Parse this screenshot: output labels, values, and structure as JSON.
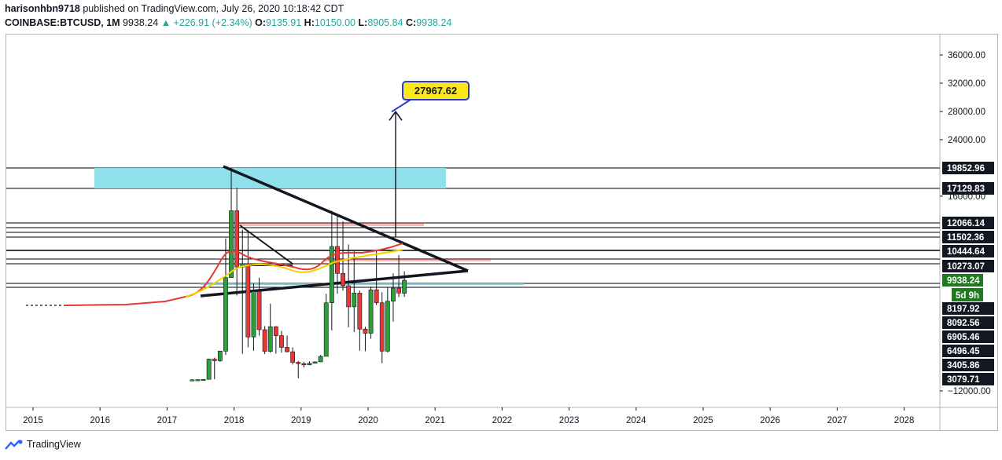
{
  "header": {
    "publisher": "harisonhbn9718",
    "published_text": "published on TradingView.com, July 26, 2020 10:18:42 CDT",
    "symbol": "COINBASE:BTCUSD, 1M",
    "last": "9938.24",
    "change": "▲ +226.91 (+2.34%)",
    "o_label": "O:",
    "o_value": "9135.91",
    "h_label": "H:",
    "h_value": "10150.00",
    "l_label": "L:",
    "l_value": "8905.84",
    "c_label": "C:",
    "c_value": "9938.24"
  },
  "footer": {
    "brand": "TradingView"
  },
  "colors": {
    "up": "#26a69a",
    "candle_up": "#2e9e3a",
    "candle_down": "#e53935",
    "ma_red": "#e53935",
    "ma_yellow": "#f5d000",
    "zone": "#8fe0ea",
    "target_bg": "#fbe71c",
    "target_border": "#2c3ac9",
    "price_tag": "#1f7a1f"
  },
  "chart_data": {
    "type": "candlestick",
    "title": "",
    "xlabel": "",
    "ylabel": "",
    "x_ticks": [
      "2015",
      "2016",
      "2017",
      "2018",
      "2019",
      "2020",
      "2021",
      "2022",
      "2023",
      "2024",
      "2025",
      "2026",
      "2027",
      "2028"
    ],
    "y_ticks": [
      "36000.00",
      "32000.00",
      "28000.00",
      "24000.00",
      "16000.00",
      "−12000.00"
    ],
    "y_tick_values": [
      36000,
      32000,
      28000,
      24000,
      16000,
      -12000
    ],
    "price_labels": [
      "19852.96",
      "17129.83",
      "12066.14",
      "11502.36",
      "10444.64",
      "10273.07",
      "8197.92",
      "8092.56",
      "6905.46",
      "6496.45",
      "3405.86",
      "3079.71"
    ],
    "current_price": "9938.24",
    "countdown": "5d 9h",
    "target_label": "27967.62",
    "target_value": 27967.62,
    "candles_2017_2020": [
      {
        "date": "2017-05",
        "open": 1350,
        "close": 2300,
        "high": 2800,
        "low": 1400
      },
      {
        "date": "2017-06",
        "open": 2300,
        "close": 2450,
        "high": 3000,
        "low": 2100
      },
      {
        "date": "2017-07",
        "open": 2450,
        "close": 2850,
        "high": 2950,
        "low": 1900
      },
      {
        "date": "2017-08",
        "open": 2850,
        "close": 4700,
        "high": 4800,
        "low": 2700
      },
      {
        "date": "2017-09",
        "open": 4700,
        "close": 4350,
        "high": 5000,
        "low": 3000
      },
      {
        "date": "2017-10",
        "open": 4350,
        "close": 6450,
        "high": 6500,
        "low": 4100
      },
      {
        "date": "2017-11",
        "open": 6450,
        "close": 10000,
        "high": 11400,
        "low": 5600
      },
      {
        "date": "2017-12",
        "open": 10000,
        "close": 13850,
        "high": 19850,
        "low": 10000
      },
      {
        "date": "2018-01",
        "open": 13850,
        "close": 10250,
        "high": 17200,
        "low": 9000
      },
      {
        "date": "2018-02",
        "open": 10250,
        "close": 10300,
        "high": 11800,
        "low": 5900
      },
      {
        "date": "2018-03",
        "open": 10300,
        "close": 6900,
        "high": 11700,
        "low": 6600
      },
      {
        "date": "2018-04",
        "open": 6900,
        "close": 9250,
        "high": 9750,
        "low": 6500
      },
      {
        "date": "2018-05",
        "open": 9250,
        "close": 7500,
        "high": 10000,
        "low": 7000
      },
      {
        "date": "2018-06",
        "open": 7500,
        "close": 6400,
        "high": 7800,
        "low": 5800
      },
      {
        "date": "2018-07",
        "open": 6400,
        "close": 7750,
        "high": 8500,
        "low": 6100
      },
      {
        "date": "2018-08",
        "open": 7750,
        "close": 7000,
        "high": 7800,
        "low": 5880
      },
      {
        "date": "2018-09",
        "open": 7000,
        "close": 6600,
        "high": 7400,
        "low": 6100
      },
      {
        "date": "2018-10",
        "open": 6600,
        "close": 6300,
        "high": 7000,
        "low": 6200
      },
      {
        "date": "2018-11",
        "open": 6300,
        "close": 4000,
        "high": 6600,
        "low": 3500
      },
      {
        "date": "2018-12",
        "open": 4000,
        "close": 3700,
        "high": 4300,
        "low": 3100
      },
      {
        "date": "2019-01",
        "open": 3700,
        "close": 3450,
        "high": 4100,
        "low": 3350
      },
      {
        "date": "2019-02",
        "open": 3450,
        "close": 3800,
        "high": 4200,
        "low": 3400
      },
      {
        "date": "2019-03",
        "open": 3800,
        "close": 4100,
        "high": 4200,
        "low": 3700
      },
      {
        "date": "2019-04",
        "open": 4100,
        "close": 5300,
        "high": 5600,
        "low": 4050
      },
      {
        "date": "2019-05",
        "open": 5300,
        "close": 8550,
        "high": 9100,
        "low": 5300
      },
      {
        "date": "2019-06",
        "open": 8550,
        "close": 10800,
        "high": 13850,
        "low": 7450
      },
      {
        "date": "2019-07",
        "open": 10800,
        "close": 10100,
        "high": 13200,
        "low": 9100
      },
      {
        "date": "2019-08",
        "open": 10100,
        "close": 9600,
        "high": 12300,
        "low": 9300
      },
      {
        "date": "2019-09",
        "open": 9600,
        "close": 8300,
        "high": 10950,
        "low": 7700
      },
      {
        "date": "2019-10",
        "open": 8300,
        "close": 9150,
        "high": 10500,
        "low": 7300
      },
      {
        "date": "2019-11",
        "open": 9150,
        "close": 7550,
        "high": 9300,
        "low": 6500
      },
      {
        "date": "2019-12",
        "open": 7550,
        "close": 7200,
        "high": 7750,
        "low": 6430
      },
      {
        "date": "2020-01",
        "open": 7200,
        "close": 9350,
        "high": 9550,
        "low": 6850
      },
      {
        "date": "2020-02",
        "open": 9350,
        "close": 8550,
        "high": 10500,
        "low": 8400
      },
      {
        "date": "2020-03",
        "open": 8550,
        "close": 6450,
        "high": 9200,
        "low": 3800
      },
      {
        "date": "2020-04",
        "open": 6450,
        "close": 8650,
        "high": 9500,
        "low": 6150
      },
      {
        "date": "2020-05",
        "open": 8650,
        "close": 9450,
        "high": 10100,
        "low": 8100
      },
      {
        "date": "2020-06",
        "open": 9450,
        "close": 9150,
        "high": 10400,
        "low": 8900
      },
      {
        "date": "2020-07",
        "open": 9135.91,
        "close": 9938.24,
        "high": 10150,
        "low": 8905.84
      }
    ],
    "grid": false,
    "legend": "none"
  }
}
